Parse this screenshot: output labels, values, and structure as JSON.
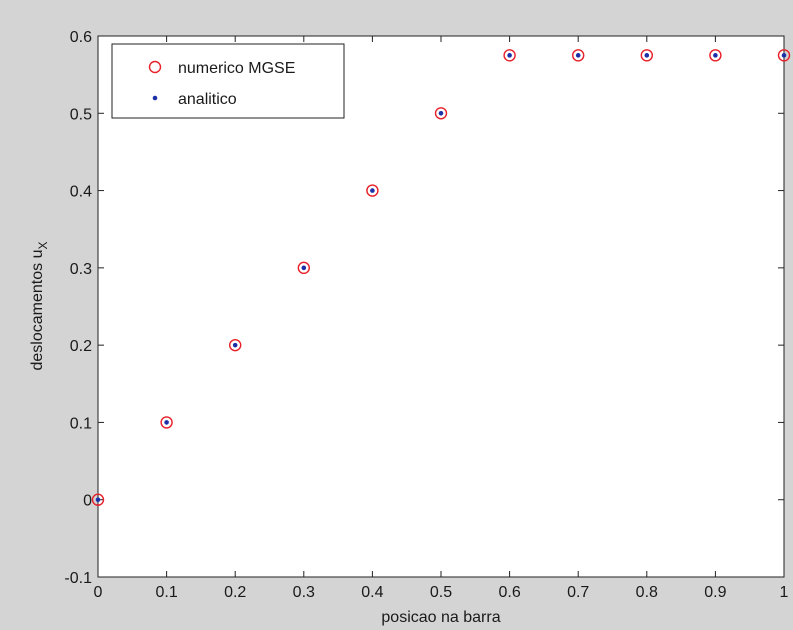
{
  "chart_data": {
    "type": "scatter",
    "xlabel": "posicao na barra",
    "ylabel": "deslocamentos u",
    "ylabel_subscript": "X",
    "xlim": [
      0,
      1
    ],
    "ylim": [
      -0.1,
      0.6
    ],
    "xticks": [
      "0",
      "0.1",
      "0.2",
      "0.3",
      "0.4",
      "0.5",
      "0.6",
      "0.7",
      "0.8",
      "0.9",
      "1"
    ],
    "yticks": [
      "-0.1",
      "0",
      "0.1",
      "0.2",
      "0.3",
      "0.4",
      "0.5",
      "0.6"
    ],
    "grid": false,
    "legend_position": "top-left",
    "series": [
      {
        "name": "numerico MGSE",
        "marker": "circle-open",
        "color": "#e8202a",
        "x": [
          0,
          0.1,
          0.2,
          0.3,
          0.4,
          0.5,
          0.6,
          0.7,
          0.8,
          0.9,
          1.0
        ],
        "y": [
          0,
          0.1,
          0.2,
          0.3,
          0.4,
          0.5,
          0.575,
          0.575,
          0.575,
          0.575,
          0.575
        ]
      },
      {
        "name": "analitico",
        "marker": "dot",
        "color": "#1c2fa8",
        "x": [
          0,
          0.1,
          0.2,
          0.3,
          0.4,
          0.5,
          0.6,
          0.7,
          0.8,
          0.9,
          1.0
        ],
        "y": [
          0,
          0.1,
          0.2,
          0.3,
          0.4,
          0.5,
          0.575,
          0.575,
          0.575,
          0.575,
          0.575
        ]
      }
    ]
  }
}
